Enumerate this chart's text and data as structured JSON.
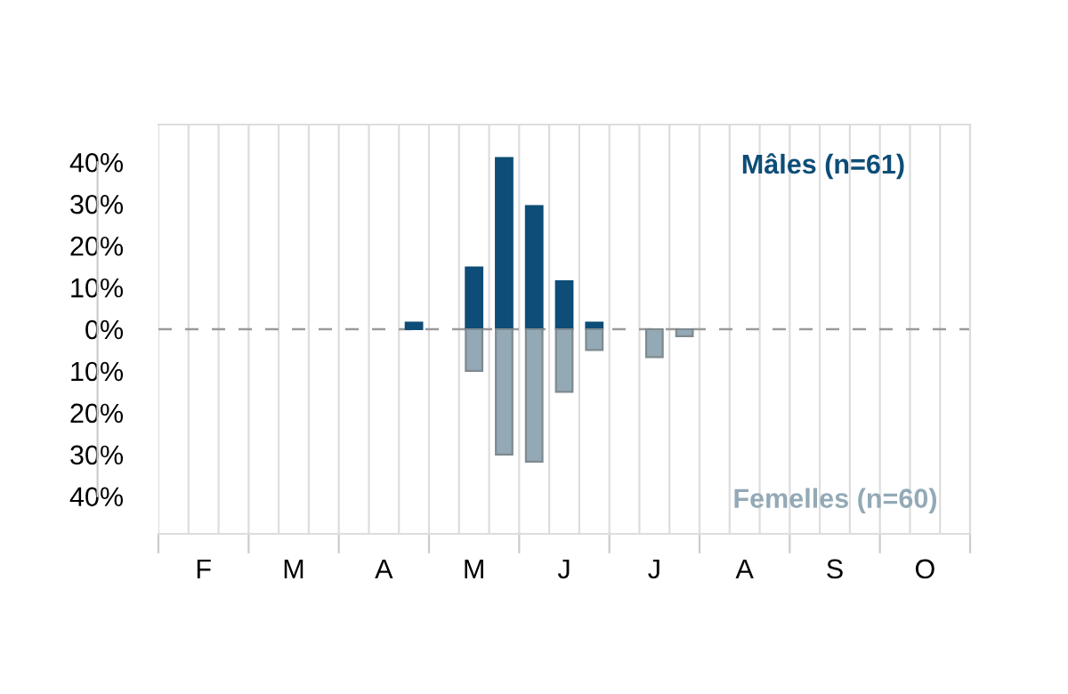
{
  "chart_data": {
    "type": "bar",
    "categories": [
      null,
      "F",
      null,
      null,
      "M",
      null,
      null,
      "A",
      null,
      null,
      "M",
      null,
      null,
      "J",
      null,
      null,
      "J",
      null,
      null,
      "A",
      null,
      null,
      "S",
      null,
      null,
      "O",
      null
    ],
    "series": [
      {
        "name": "Mâles (n=61)",
        "color": "#0d4d77",
        "values": [
          null,
          null,
          null,
          null,
          null,
          null,
          null,
          null,
          1.6,
          null,
          14.8,
          41.0,
          29.5,
          11.5,
          1.6,
          null,
          null,
          null,
          null,
          null,
          null,
          null,
          null,
          null,
          null,
          null,
          null
        ]
      },
      {
        "name": "Femelles (n=60)",
        "color": "#93a9b6",
        "values": [
          null,
          null,
          null,
          null,
          null,
          null,
          null,
          null,
          null,
          null,
          -10,
          -30,
          -31.7,
          -15,
          -5,
          null,
          -6.7,
          -1.7,
          null,
          null,
          null,
          null,
          null,
          null,
          null,
          null,
          null
        ]
      }
    ],
    "ylim": [
      -49,
      49
    ],
    "yticks": [
      {
        "value": -40,
        "label": "40%"
      },
      {
        "value": -30,
        "label": "30%"
      },
      {
        "value": -20,
        "label": "20%"
      },
      {
        "value": -10,
        "label": "10%"
      },
      {
        "value": 0,
        "label": "0%"
      },
      {
        "value": 10,
        "label": "10%"
      },
      {
        "value": 20,
        "label": "20%"
      },
      {
        "value": 30,
        "label": "30%"
      },
      {
        "value": 40,
        "label": "40%"
      }
    ],
    "ref_lines": [
      {
        "axis": "y",
        "value": 0,
        "color": "#9a9a9a",
        "line_style": "dashed"
      }
    ],
    "grid": "x"
  }
}
